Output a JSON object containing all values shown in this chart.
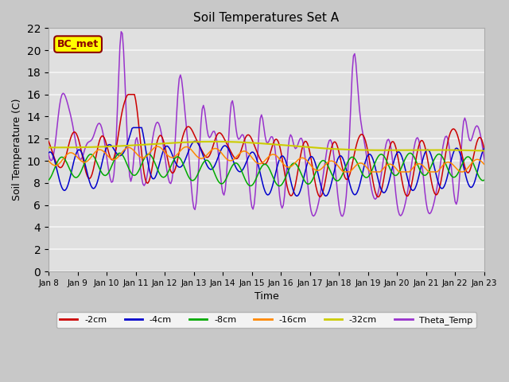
{
  "title": "Soil Temperatures Set A",
  "xlabel": "Time",
  "ylabel": "Soil Temperature (C)",
  "ylim": [
    0,
    22
  ],
  "fig_bg": "#c8c8c8",
  "plot_bg": "#e0e0e0",
  "grid_color": "#f5f5f5",
  "label_box_text": "BC_met",
  "label_box_facecolor": "#ffff00",
  "label_box_edgecolor": "#8b0000",
  "series_colors": {
    "-2cm": "#cc0000",
    "-4cm": "#0000cc",
    "-8cm": "#00aa00",
    "-16cm": "#ff8800",
    "-32cm": "#cccc00",
    "Theta_Temp": "#9933cc"
  },
  "xtick_labels": [
    "Jan 8",
    "Jan 9",
    "Jan 10",
    "Jan 11",
    "Jan 12",
    "Jan 13",
    "Jan 14",
    "Jan 15",
    "Jan 16",
    "Jan 17",
    "Jan 18",
    "Jan 19",
    "Jan 20",
    "Jan 21",
    "Jan 22",
    "Jan 23"
  ],
  "yticks": [
    0,
    2,
    4,
    6,
    8,
    10,
    12,
    14,
    16,
    18,
    20,
    22
  ]
}
